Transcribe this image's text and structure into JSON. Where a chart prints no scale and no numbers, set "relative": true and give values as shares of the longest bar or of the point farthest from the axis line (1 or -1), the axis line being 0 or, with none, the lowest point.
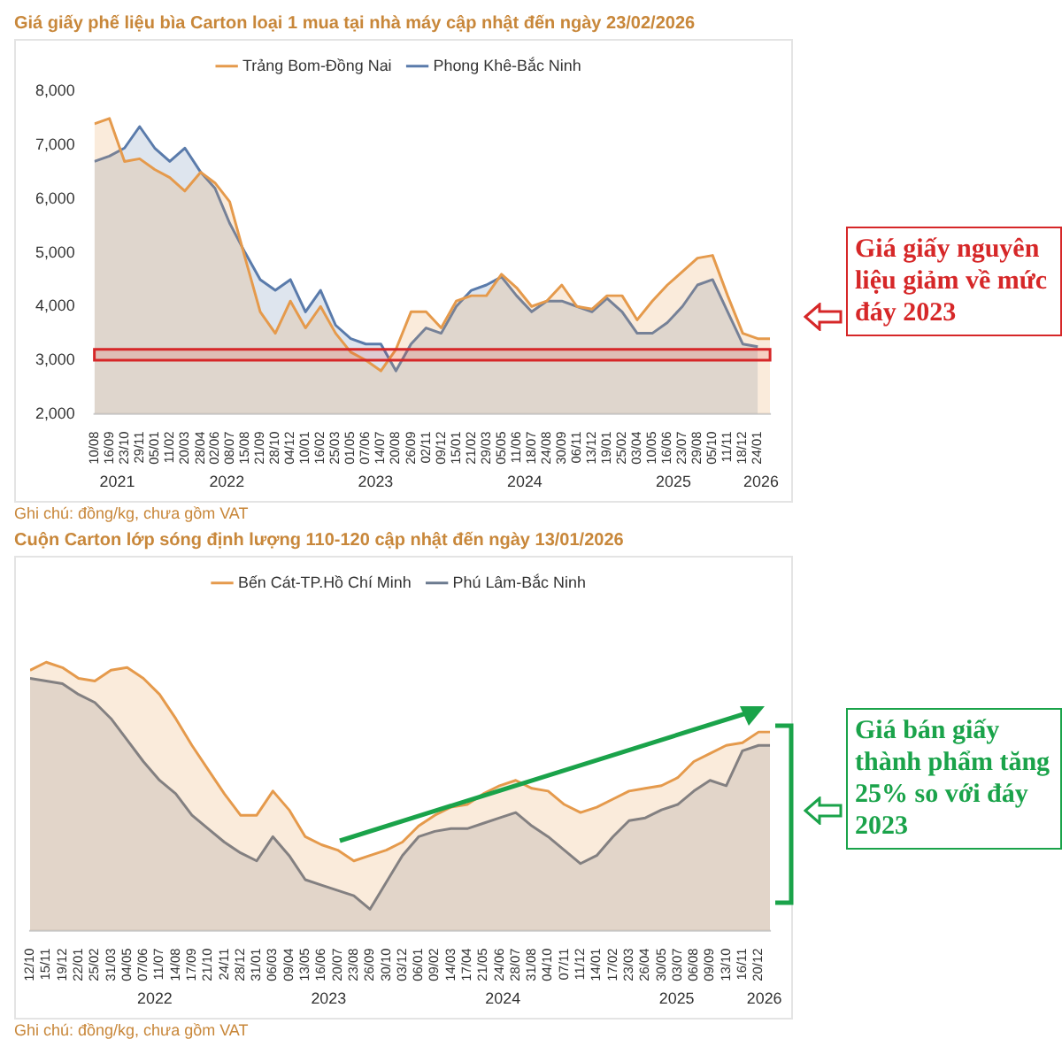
{
  "chart_data": [
    {
      "type": "area",
      "title": "Giá giấy phế liệu bìa Carton loại 1 mua tại nhà máy cập nhật đến ngày 23/02/2026",
      "legend": "top",
      "x": [
        "2021-08-10",
        "2021-09-16",
        "2021-10-23",
        "2021-11-29",
        "2022-01-05",
        "2022-02-11",
        "2022-03-20",
        "2022-04-28",
        "2022-06-02",
        "2022-07-08",
        "2022-08-15",
        "2022-09-21",
        "2022-10-28",
        "2022-12-04",
        "2023-01-10",
        "2023-02-16",
        "2023-03-25",
        "2023-05-01",
        "2023-06-07",
        "2023-07-14",
        "2023-08-20",
        "2023-09-26",
        "2023-11-02",
        "2023-12-09",
        "2024-01-15",
        "2024-02-21",
        "2024-03-29",
        "2024-05-05",
        "2024-06-11",
        "2024-07-18",
        "2024-08-24",
        "2024-09-30",
        "2024-11-06",
        "2024-12-13",
        "2025-01-19",
        "2025-02-25",
        "2025-04-03",
        "2025-05-10",
        "2025-06-16",
        "2025-07-23",
        "2025-08-29",
        "2025-10-05",
        "2025-11-11",
        "2025-12-18",
        "2026-01-24",
        "2026-02-23"
      ],
      "series": [
        {
          "name": "Phong Khê-Bắc Ninh",
          "color": "#5a7bab",
          "values": [
            6700,
            6800,
            6950,
            7350,
            6950,
            6700,
            6950,
            6500,
            6200,
            5550,
            5000,
            4500,
            4300,
            4500,
            3900,
            4300,
            3650,
            3400,
            3300,
            3300,
            2800,
            3300,
            3600,
            3500,
            4000,
            4300,
            4400,
            4550,
            4200,
            3900,
            4100,
            4100,
            4000,
            3900,
            4150,
            3900,
            3500,
            3500,
            3700,
            4000,
            4400,
            4500,
            3900,
            3300,
            3250,
            null
          ]
        },
        {
          "name": "Trảng Bom-Đồng Nai",
          "color": "#e59a4c",
          "values": [
            7400,
            7500,
            6700,
            6750,
            6550,
            6400,
            6150,
            6500,
            6300,
            5950,
            4900,
            3900,
            3500,
            4100,
            3600,
            4000,
            3500,
            3150,
            3000,
            2800,
            3200,
            3900,
            3900,
            3600,
            4100,
            4200,
            4200,
            4600,
            4350,
            4000,
            4100,
            4400,
            4000,
            3950,
            4200,
            4200,
            3750,
            4100,
            4400,
            4650,
            4900,
            4950,
            4200,
            3500,
            3400,
            3400
          ]
        }
      ],
      "xlim": [
        "2021-08-10",
        "2026-02-23"
      ],
      "xticks": [
        {
          "value": "2021-08-10",
          "label": "10/08"
        },
        {
          "value": "2021-09-16",
          "label": "16/09"
        },
        {
          "value": "2021-10-23",
          "label": "23/10"
        },
        {
          "value": "2021-11-29",
          "label": "29/11"
        },
        {
          "value": "2022-01-05",
          "label": "05/01"
        },
        {
          "value": "2022-02-11",
          "label": "11/02"
        },
        {
          "value": "2022-03-20",
          "label": "20/03"
        },
        {
          "value": "2022-04-28",
          "label": "28/04"
        },
        {
          "value": "2022-06-02",
          "label": "02/06"
        },
        {
          "value": "2022-07-08",
          "label": "08/07"
        },
        {
          "value": "2022-08-15",
          "label": "15/08"
        },
        {
          "value": "2022-09-21",
          "label": "21/09"
        },
        {
          "value": "2022-10-28",
          "label": "28/10"
        },
        {
          "value": "2022-12-04",
          "label": "04/12"
        },
        {
          "value": "2023-01-10",
          "label": "10/01"
        },
        {
          "value": "2023-02-16",
          "label": "16/02"
        },
        {
          "value": "2023-03-25",
          "label": "25/03"
        },
        {
          "value": "2023-05-01",
          "label": "01/05"
        },
        {
          "value": "2023-06-07",
          "label": "07/06"
        },
        {
          "value": "2023-07-14",
          "label": "14/07"
        },
        {
          "value": "2023-08-20",
          "label": "20/08"
        },
        {
          "value": "2023-09-26",
          "label": "26/09"
        },
        {
          "value": "2023-11-02",
          "label": "02/11"
        },
        {
          "value": "2023-12-09",
          "label": "09/12"
        },
        {
          "value": "2024-01-15",
          "label": "15/01"
        },
        {
          "value": "2024-02-21",
          "label": "21/02"
        },
        {
          "value": "2024-03-29",
          "label": "29/03"
        },
        {
          "value": "2024-05-05",
          "label": "05/05"
        },
        {
          "value": "2024-06-11",
          "label": "11/06"
        },
        {
          "value": "2024-07-18",
          "label": "18/07"
        },
        {
          "value": "2024-08-24",
          "label": "24/08"
        },
        {
          "value": "2024-09-30",
          "label": "30/09"
        },
        {
          "value": "2024-11-06",
          "label": "06/11"
        },
        {
          "value": "2024-12-13",
          "label": "13/12"
        },
        {
          "value": "2025-01-19",
          "label": "19/01"
        },
        {
          "value": "2025-02-25",
          "label": "25/02"
        },
        {
          "value": "2025-04-03",
          "label": "03/04"
        },
        {
          "value": "2025-05-10",
          "label": "10/05"
        },
        {
          "value": "2025-06-16",
          "label": "16/06"
        },
        {
          "value": "2025-07-23",
          "label": "23/07"
        },
        {
          "value": "2025-08-29",
          "label": "29/08"
        },
        {
          "value": "2025-10-05",
          "label": "05/10"
        },
        {
          "value": "2025-11-11",
          "label": "11/11"
        },
        {
          "value": "2025-12-18",
          "label": "18/12"
        },
        {
          "value": "2026-01-24",
          "label": "24/01"
        }
      ],
      "x2lim": [
        "2021-08-10",
        "2026-02-23"
      ],
      "x2ticks": [
        {
          "value": "2021-10-05",
          "label": "2021"
        },
        {
          "value": "2022-07-01",
          "label": "2022"
        },
        {
          "value": "2023-07-01",
          "label": "2023"
        },
        {
          "value": "2024-07-01",
          "label": "2024"
        },
        {
          "value": "2025-07-01",
          "label": "2025"
        },
        {
          "value": "2026-02-01",
          "label": "2026"
        }
      ],
      "ylim": [
        2000,
        8000
      ],
      "yticks": [
        {
          "value": 2000,
          "label": "2,000"
        },
        {
          "value": 3000,
          "label": "3,000"
        },
        {
          "value": 4000,
          "label": "4,000"
        },
        {
          "value": 5000,
          "label": "5,000"
        },
        {
          "value": 6000,
          "label": "6,000"
        },
        {
          "value": 7000,
          "label": "7,000"
        },
        {
          "value": 8000,
          "label": "8,000"
        }
      ],
      "bands": [
        {
          "axis": "y",
          "from": 3000,
          "to": 3200,
          "color": "#d62728"
        }
      ],
      "annotations": [
        "Ghi chú: đồng/kg, chưa gồm VAT",
        "Giá giấy nguyên liệu giảm về mức đáy 2023"
      ]
    },
    {
      "type": "area",
      "title": "Cuộn Carton lớp sóng định lượng 110-120 cập nhật đến ngày 13/01/2026",
      "legend": "top",
      "relative": true,
      "x": [
        "2021-10-12",
        "2021-11-15",
        "2021-12-19",
        "2022-01-22",
        "2022-02-25",
        "2022-03-31",
        "2022-05-04",
        "2022-06-07",
        "2022-07-11",
        "2022-08-14",
        "2022-09-17",
        "2022-10-21",
        "2022-11-24",
        "2022-12-28",
        "2023-01-31",
        "2023-03-06",
        "2023-04-09",
        "2023-05-13",
        "2023-06-16",
        "2023-07-20",
        "2023-08-23",
        "2023-09-26",
        "2023-10-30",
        "2023-12-03",
        "2024-01-06",
        "2024-02-09",
        "2024-03-14",
        "2024-04-17",
        "2024-05-21",
        "2024-06-24",
        "2024-07-28",
        "2024-08-31",
        "2024-10-04",
        "2024-11-07",
        "2024-12-11",
        "2025-01-14",
        "2025-02-17",
        "2025-03-23",
        "2025-04-26",
        "2025-05-30",
        "2025-07-03",
        "2025-08-06",
        "2025-09-09",
        "2025-10-13",
        "2025-11-16",
        "2025-12-20",
        "2026-01-13"
      ],
      "series": [
        {
          "name": "Phú Lâm-Bắc Ninh",
          "color": "#6b7a8f",
          "values": [
            0.94,
            0.93,
            0.92,
            0.88,
            0.85,
            0.79,
            0.71,
            0.63,
            0.56,
            0.51,
            0.43,
            0.38,
            0.33,
            0.29,
            0.26,
            0.35,
            0.28,
            0.19,
            0.17,
            0.15,
            0.13,
            0.08,
            0.18,
            0.28,
            0.35,
            0.37,
            0.38,
            0.38,
            0.4,
            0.42,
            0.44,
            0.39,
            0.35,
            0.3,
            0.25,
            0.28,
            0.35,
            0.41,
            0.42,
            0.45,
            0.47,
            0.52,
            0.56,
            0.54,
            0.67,
            0.69,
            0.69
          ]
        },
        {
          "name": "Bến Cát-TP.Hồ Chí Minh",
          "color": "#e59a4c",
          "values": [
            0.97,
            1,
            0.98,
            0.94,
            0.93,
            0.97,
            0.98,
            0.94,
            0.88,
            0.79,
            0.69,
            0.6,
            0.51,
            0.43,
            0.43,
            0.52,
            0.45,
            0.35,
            0.32,
            0.3,
            0.26,
            0.28,
            0.3,
            0.33,
            0.39,
            0.43,
            0.46,
            0.47,
            0.51,
            0.54,
            0.56,
            0.53,
            0.52,
            0.47,
            0.44,
            0.46,
            0.49,
            0.52,
            0.53,
            0.54,
            0.57,
            0.63,
            0.66,
            0.69,
            0.7,
            0.74,
            0.74
          ]
        }
      ],
      "xlim": [
        "2021-10-12",
        "2026-01-13"
      ],
      "xticks": [
        {
          "value": "2021-10-12",
          "label": "12/10"
        },
        {
          "value": "2021-11-15",
          "label": "15/11"
        },
        {
          "value": "2021-12-19",
          "label": "19/12"
        },
        {
          "value": "2022-01-22",
          "label": "22/01"
        },
        {
          "value": "2022-02-25",
          "label": "25/02"
        },
        {
          "value": "2022-03-31",
          "label": "31/03"
        },
        {
          "value": "2022-05-04",
          "label": "04/05"
        },
        {
          "value": "2022-06-07",
          "label": "07/06"
        },
        {
          "value": "2022-07-11",
          "label": "11/07"
        },
        {
          "value": "2022-08-14",
          "label": "14/08"
        },
        {
          "value": "2022-09-17",
          "label": "17/09"
        },
        {
          "value": "2022-10-21",
          "label": "21/10"
        },
        {
          "value": "2022-11-24",
          "label": "24/11"
        },
        {
          "value": "2022-12-28",
          "label": "28/12"
        },
        {
          "value": "2023-01-31",
          "label": "31/01"
        },
        {
          "value": "2023-03-06",
          "label": "06/03"
        },
        {
          "value": "2023-04-09",
          "label": "09/04"
        },
        {
          "value": "2023-05-13",
          "label": "13/05"
        },
        {
          "value": "2023-06-16",
          "label": "16/06"
        },
        {
          "value": "2023-07-20",
          "label": "20/07"
        },
        {
          "value": "2023-08-23",
          "label": "23/08"
        },
        {
          "value": "2023-09-26",
          "label": "26/09"
        },
        {
          "value": "2023-10-30",
          "label": "30/10"
        },
        {
          "value": "2023-12-03",
          "label": "03/12"
        },
        {
          "value": "2024-01-06",
          "label": "06/01"
        },
        {
          "value": "2024-02-09",
          "label": "09/02"
        },
        {
          "value": "2024-03-14",
          "label": "14/03"
        },
        {
          "value": "2024-04-17",
          "label": "17/04"
        },
        {
          "value": "2024-05-21",
          "label": "21/05"
        },
        {
          "value": "2024-06-24",
          "label": "24/06"
        },
        {
          "value": "2024-07-28",
          "label": "28/07"
        },
        {
          "value": "2024-08-31",
          "label": "31/08"
        },
        {
          "value": "2024-10-04",
          "label": "04/10"
        },
        {
          "value": "2024-11-07",
          "label": "07/11"
        },
        {
          "value": "2024-12-11",
          "label": "11/12"
        },
        {
          "value": "2025-01-14",
          "label": "14/01"
        },
        {
          "value": "2025-02-17",
          "label": "17/02"
        },
        {
          "value": "2025-03-23",
          "label": "23/03"
        },
        {
          "value": "2025-04-26",
          "label": "26/04"
        },
        {
          "value": "2025-05-30",
          "label": "30/05"
        },
        {
          "value": "2025-07-03",
          "label": "03/07"
        },
        {
          "value": "2025-08-06",
          "label": "06/08"
        },
        {
          "value": "2025-09-09",
          "label": "09/09"
        },
        {
          "value": "2025-10-13",
          "label": "13/10"
        },
        {
          "value": "2025-11-16",
          "label": "16/11"
        },
        {
          "value": "2025-12-20",
          "label": "20/12"
        }
      ],
      "x2lim": [
        "2021-10-12",
        "2026-01-13"
      ],
      "x2ticks": [
        {
          "value": "2022-07-01",
          "label": "2022"
        },
        {
          "value": "2023-07-01",
          "label": "2023"
        },
        {
          "value": "2024-07-01",
          "label": "2024"
        },
        {
          "value": "2025-07-01",
          "label": "2025"
        },
        {
          "value": "2026-01-01",
          "label": "2026"
        }
      ],
      "annotations": [
        "Ghi chú: đồng/kg, chưa gồm VAT",
        "Giá bán giấy thành phẩm tăng 25% so với đáy 2023"
      ]
    }
  ]
}
